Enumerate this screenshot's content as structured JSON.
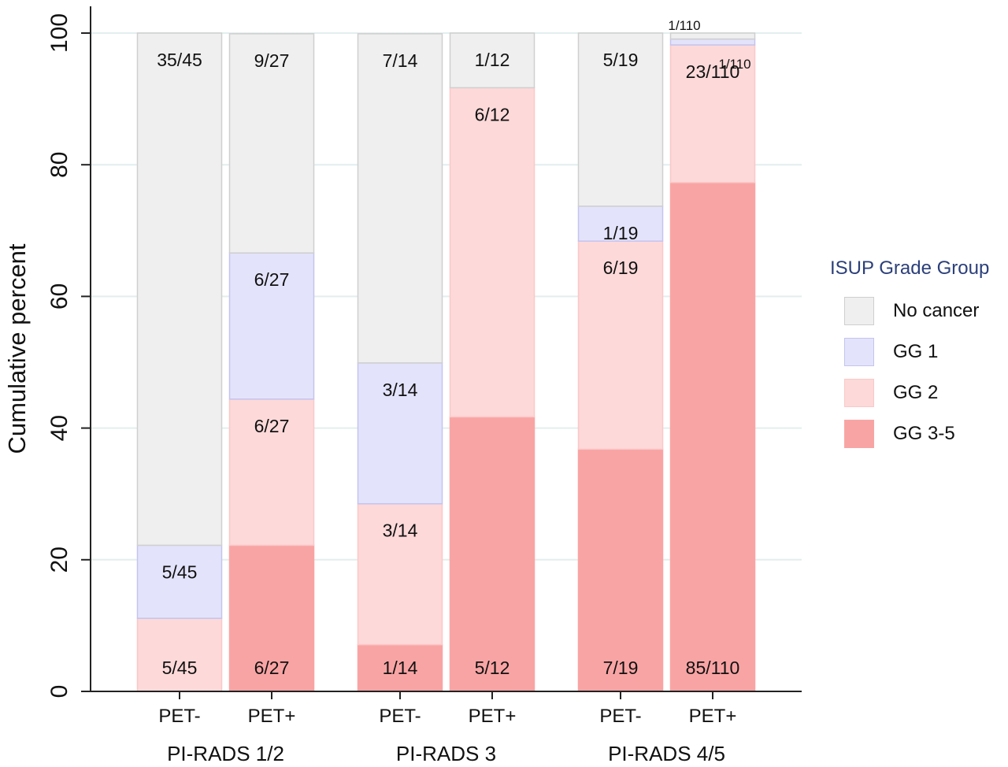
{
  "chart_data": {
    "type": "bar",
    "stacked": true,
    "ylabel": "Cumulative percent",
    "xlabel": "",
    "ylim": [
      0,
      100
    ],
    "yticks": [
      0,
      20,
      40,
      60,
      80,
      100
    ],
    "grid": true,
    "legend_position": "right",
    "legend_title": "ISUP Grade Group",
    "groups": [
      {
        "label": "PI-RADS 1/2",
        "bars": [
          "PET-",
          "PET+"
        ]
      },
      {
        "label": "PI-RADS 3",
        "bars": [
          "PET-",
          "PET+"
        ]
      },
      {
        "label": "PI-RADS 4/5",
        "bars": [
          "PET-",
          "PET+"
        ]
      }
    ],
    "categories": [
      "PET-",
      "PET+",
      "PET-",
      "PET+",
      "PET-",
      "PET+"
    ],
    "series": [
      {
        "name": "GG 3-5",
        "color": "#f9a4a4",
        "border": "#f9a4a4",
        "values": [
          0,
          22.2,
          7.1,
          41.7,
          36.8,
          77.3
        ],
        "labels": [
          "",
          "6/27",
          "1/14",
          "5/12",
          "7/19",
          "85/110"
        ]
      },
      {
        "name": "GG 2",
        "color": "#fdd9d9",
        "border": "#fbc8c8",
        "values": [
          11.1,
          22.2,
          21.4,
          50.0,
          31.6,
          20.9
        ],
        "labels": [
          "5/45",
          "6/27",
          "3/14",
          "6/12",
          "6/19",
          "23/110"
        ]
      },
      {
        "name": "GG 1",
        "color": "#e3e3fb",
        "border": "#c4c4ef",
        "values": [
          11.1,
          22.2,
          21.4,
          0,
          5.3,
          0.9
        ],
        "labels": [
          "5/45",
          "6/27",
          "3/14",
          "",
          "1/19",
          "1/110"
        ]
      },
      {
        "name": "No cancer",
        "color": "#efefef",
        "border": "#cfcfcf",
        "values": [
          77.8,
          33.3,
          50.0,
          8.3,
          26.3,
          0.9
        ],
        "labels": [
          "35/45",
          "9/27",
          "7/14",
          "1/12",
          "5/19",
          "1/110"
        ]
      }
    ]
  }
}
